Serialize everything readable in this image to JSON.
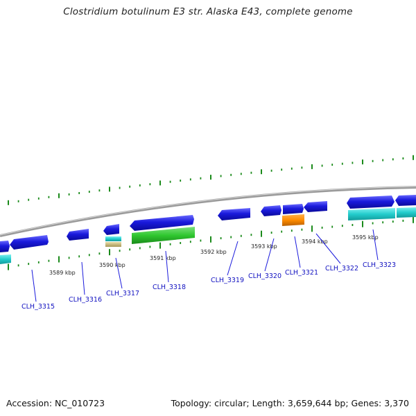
{
  "title": "Clostridium botulinum E3 str. Alaska E43, complete genome",
  "footer": {
    "accession": "Accession: NC_010723",
    "topology": "Topology: circular; Length: 3,659,644 bp; Genes: 3,370"
  },
  "colors": {
    "background": "#ffffff",
    "backbone": "#8a8a8a",
    "cds": "#1a1adc",
    "rrna": "#2fc72f",
    "rrna_alt": "#22cccc",
    "trna": "#ff8c00",
    "misc": "#c8b878",
    "ticks": "#1a8a1a",
    "label_text": "#1010c0"
  },
  "scale_labels": [
    "3589 kbp",
    "3590 kbp",
    "3591 kbp",
    "3592 kbp",
    "3593 kbp",
    "3594 kbp",
    "3595 kbp"
  ],
  "gene_labels": [
    "CLH_3315",
    "CLH_3316",
    "CLH_3317",
    "CLH_3318",
    "CLH_3319",
    "CLH_3320",
    "CLH_3321",
    "CLH_3322",
    "CLH_3323"
  ]
}
